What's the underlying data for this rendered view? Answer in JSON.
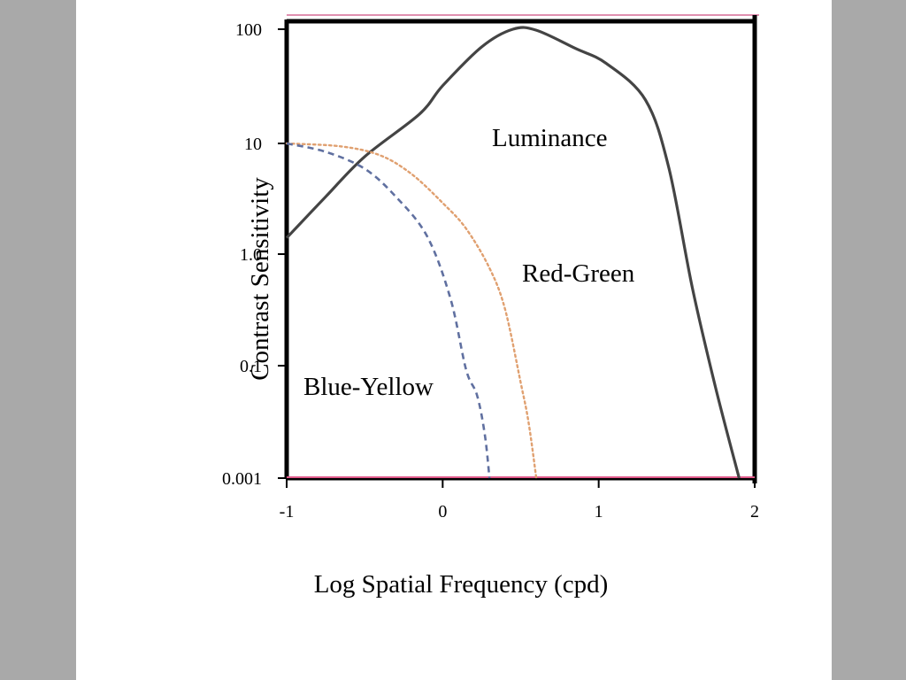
{
  "colors": {
    "page_background": "#a9a9a9",
    "slide_background": "#ffffff",
    "frame": "#000000",
    "luminance": "#444444",
    "red_green": "#e0a070",
    "blue_yellow": "#6070a0",
    "top_edge_highlight": "#e090b0",
    "bottom_edge_highlight": "#e05a8a"
  },
  "chart_data": {
    "type": "line",
    "title": "",
    "xlabel": "Log Spatial Frequency (cpd)",
    "ylabel": "Contrast Sensitivity",
    "xlim": [
      -1,
      2
    ],
    "x_ticks": [
      -1,
      0,
      1,
      2
    ],
    "x_tick_labels": [
      "-1",
      "0",
      "1",
      "2"
    ],
    "y_scale": "log (printed tick labels, non-uniform)",
    "y_ticks": [
      0.001,
      0.1,
      1.0,
      10,
      100
    ],
    "y_tick_labels": [
      "0.001",
      "0.1",
      "1.0",
      "10",
      "100"
    ],
    "grid": false,
    "legend": "none (curves labeled directly)",
    "series": [
      {
        "name": "Luminance",
        "style": "solid",
        "color": "#444444",
        "points": [
          [
            -1.0,
            1.4
          ],
          [
            -0.75,
            3.3
          ],
          [
            -0.5,
            7.6
          ],
          [
            -0.15,
            18
          ],
          [
            0.0,
            32
          ],
          [
            0.25,
            70
          ],
          [
            0.45,
            100
          ],
          [
            0.6,
            98
          ],
          [
            0.85,
            68
          ],
          [
            1.05,
            50
          ],
          [
            1.3,
            24
          ],
          [
            1.45,
            6
          ],
          [
            1.6,
            0.5
          ],
          [
            1.75,
            0.04
          ],
          [
            1.9,
            0.001
          ]
        ]
      },
      {
        "name": "Red-Green",
        "style": "dotted",
        "color": "#e0a070",
        "points": [
          [
            -1.0,
            10
          ],
          [
            -0.65,
            9.4
          ],
          [
            -0.4,
            7.8
          ],
          [
            -0.2,
            5.3
          ],
          [
            0.0,
            2.9
          ],
          [
            0.15,
            1.7
          ],
          [
            0.3,
            0.75
          ],
          [
            0.4,
            0.32
          ],
          [
            0.5,
            0.05
          ],
          [
            0.55,
            0.01
          ],
          [
            0.6,
            0.001
          ]
        ]
      },
      {
        "name": "Blue-Yellow",
        "style": "dashed",
        "color": "#6070a0",
        "points": [
          [
            -1.0,
            10
          ],
          [
            -0.75,
            8.4
          ],
          [
            -0.5,
            5.9
          ],
          [
            -0.3,
            3.3
          ],
          [
            -0.1,
            1.45
          ],
          [
            0.05,
            0.4
          ],
          [
            0.15,
            0.085
          ],
          [
            0.22,
            0.03
          ],
          [
            0.27,
            0.006
          ],
          [
            0.3,
            0.001
          ]
        ]
      }
    ],
    "annotations": [
      {
        "text": "Luminance",
        "series": "Luminance"
      },
      {
        "text": "Red-Green",
        "series": "Red-Green"
      },
      {
        "text": "Blue-Yellow",
        "series": "Blue-Yellow"
      }
    ]
  }
}
